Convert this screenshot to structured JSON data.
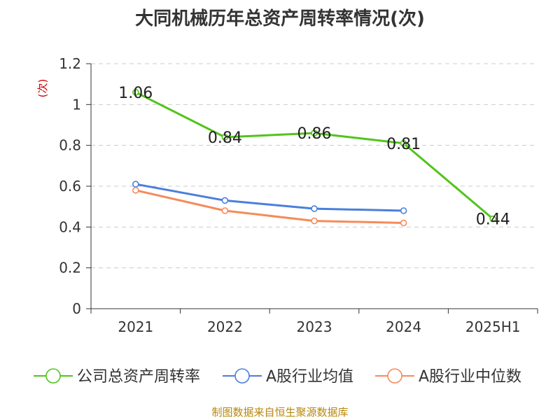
{
  "chart_data": {
    "type": "line",
    "title": "大同机械历年总资产周转率情况(次)",
    "ylabel": "(次)",
    "xlabel": "",
    "categories": [
      "2021",
      "2022",
      "2023",
      "2024",
      "2025H1"
    ],
    "ylim": [
      0,
      1.2
    ],
    "yticks": [
      "0",
      "0.2",
      "0.4",
      "0.6",
      "0.8",
      "1",
      "1.2"
    ],
    "grid": true,
    "legend_position": "bottom",
    "series": [
      {
        "name": "公司总资产周转率",
        "color": "#52c41a",
        "values": [
          1.06,
          0.84,
          0.86,
          0.81,
          0.44
        ],
        "labels": [
          "1.06",
          "0.84",
          "0.86",
          "0.81",
          "0.44"
        ]
      },
      {
        "name": "A股行业均值",
        "color": "#4a7fdb",
        "values": [
          0.61,
          0.53,
          0.49,
          0.48,
          null
        ]
      },
      {
        "name": "A股行业中位数",
        "color": "#f58b5a",
        "values": [
          0.58,
          0.48,
          0.43,
          0.42,
          null
        ]
      }
    ]
  },
  "source_note": "制图数据来自恒生聚源数据库"
}
